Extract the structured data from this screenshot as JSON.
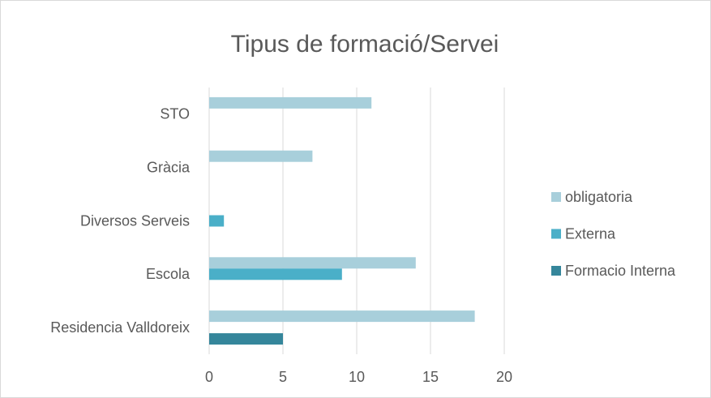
{
  "chart_data": {
    "type": "bar",
    "orientation": "horizontal",
    "title": "Tipus de formació/Servei",
    "categories": [
      "STO",
      "Gràcia",
      "Diversos Serveis",
      "Escola",
      "Residencia Valldoreix"
    ],
    "series": [
      {
        "name": "obligatoria",
        "color": "#a8cfdb",
        "values": [
          11,
          7,
          null,
          14,
          18
        ]
      },
      {
        "name": "Externa",
        "color": "#4aafc8",
        "values": [
          null,
          null,
          1,
          9,
          null
        ]
      },
      {
        "name": "Formacio Interna",
        "color": "#35869b",
        "values": [
          null,
          null,
          null,
          null,
          5
        ]
      }
    ],
    "xlim": [
      0,
      20
    ],
    "xticks": [
      0,
      5,
      10,
      15,
      20
    ],
    "grid": true,
    "legend": "right"
  }
}
